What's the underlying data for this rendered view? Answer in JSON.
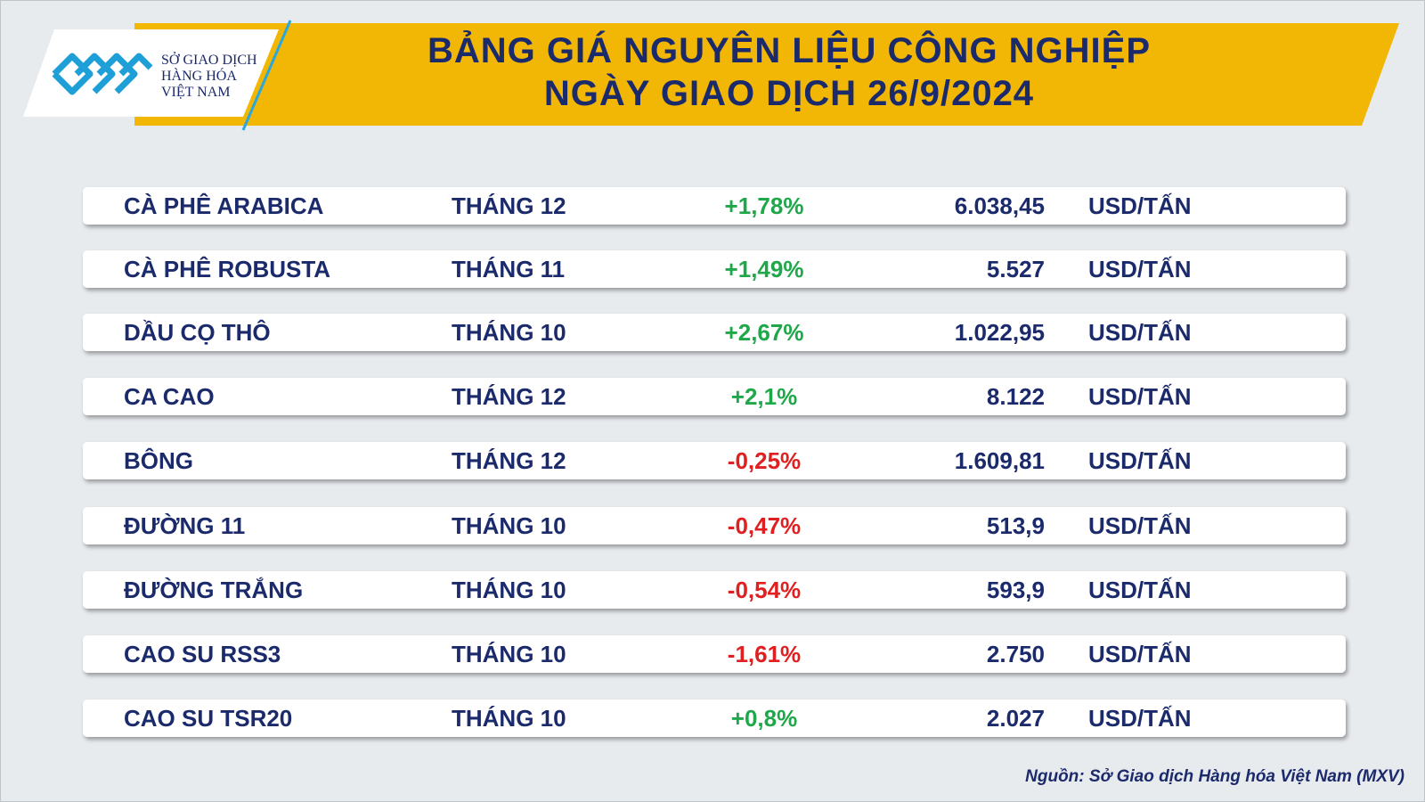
{
  "header": {
    "logo": [
      "SỞ GIAO DỊCH",
      "HÀNG HÓA",
      "VIỆT NAM"
    ],
    "title": [
      "BẢNG GIÁ NGUYÊN LIỆU CÔNG NGHIỆP",
      "NGÀY GIAO DỊCH 26/9/2024"
    ]
  },
  "table": {
    "rows": [
      {
        "name": "CÀ PHÊ ARABICA",
        "month": "THÁNG 12",
        "change": "+1,78%",
        "change_color": "#1fa84a",
        "price": "6.038,45",
        "unit": "USD/TẤN"
      },
      {
        "name": "CÀ PHÊ ROBUSTA",
        "month": "THÁNG 11",
        "change": "+1,49%",
        "change_color": "#1fa84a",
        "price": "5.527",
        "unit": "USD/TẤN"
      },
      {
        "name": "DẦU CỌ THÔ",
        "month": "THÁNG 10",
        "change": "+2,67%",
        "change_color": "#1fa84a",
        "price": "1.022,95",
        "unit": "USD/TẤN"
      },
      {
        "name": "CA CAO",
        "month": "THÁNG 12",
        "change": "+2,1%",
        "change_color": "#1fa84a",
        "price": "8.122",
        "unit": "USD/TẤN"
      },
      {
        "name": "BÔNG",
        "month": "THÁNG 12",
        "change": "-0,25%",
        "change_color": "#e02020",
        "price": "1.609,81",
        "unit": "USD/TẤN"
      },
      {
        "name": "ĐƯỜNG 11",
        "month": "THÁNG 10",
        "change": "-0,47%",
        "change_color": "#e02020",
        "price": "513,9",
        "unit": "USD/TẤN"
      },
      {
        "name": "ĐƯỜNG TRẮNG",
        "month": "THÁNG 10",
        "change": "-0,54%",
        "change_color": "#e02020",
        "price": "593,9",
        "unit": "USD/TẤN"
      },
      {
        "name": "CAO SU RSS3",
        "month": "THÁNG 10",
        "change": "-1,61%",
        "change_color": "#e02020",
        "price": "2.750",
        "unit": "USD/TẤN"
      },
      {
        "name": "CAO SU TSR20",
        "month": "THÁNG 10",
        "change": "+0,8%",
        "change_color": "#1fa84a",
        "price": "2.027",
        "unit": "USD/TẤN"
      }
    ]
  },
  "footer": {
    "source": "Nguồn: Sở Giao dịch Hàng hóa Việt Nam (MXV)"
  }
}
